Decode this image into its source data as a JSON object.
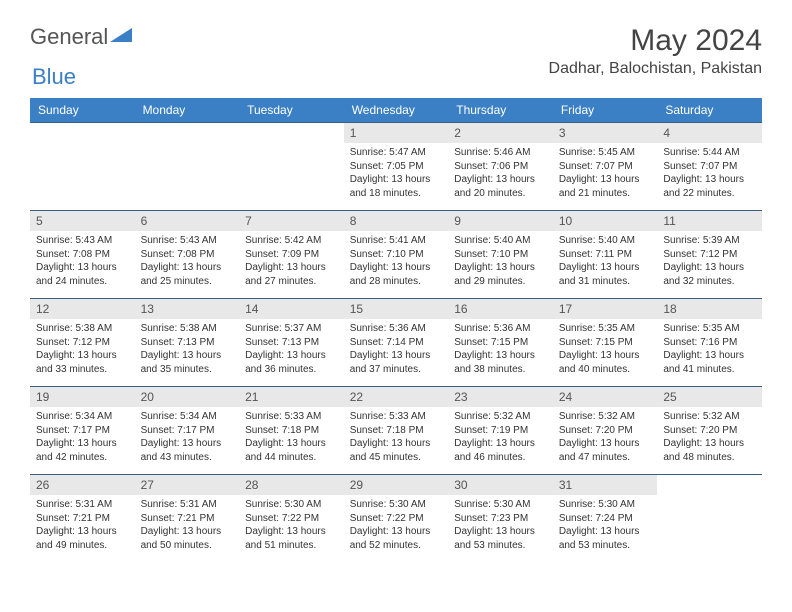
{
  "logo": {
    "text1": "General",
    "text2": "Blue"
  },
  "title": "May 2024",
  "location": "Dadhar, Balochistan, Pakistan",
  "colors": {
    "header_bg": "#3b7fc4",
    "header_text": "#ffffff",
    "daynum_bg": "#e8e8e8",
    "border": "#3b5f84",
    "text": "#333333"
  },
  "weekdays": [
    "Sunday",
    "Monday",
    "Tuesday",
    "Wednesday",
    "Thursday",
    "Friday",
    "Saturday"
  ],
  "weeks": [
    [
      {
        "empty": true
      },
      {
        "empty": true
      },
      {
        "empty": true
      },
      {
        "num": "1",
        "sunrise": "Sunrise: 5:47 AM",
        "sunset": "Sunset: 7:05 PM",
        "day1": "Daylight: 13 hours",
        "day2": "and 18 minutes."
      },
      {
        "num": "2",
        "sunrise": "Sunrise: 5:46 AM",
        "sunset": "Sunset: 7:06 PM",
        "day1": "Daylight: 13 hours",
        "day2": "and 20 minutes."
      },
      {
        "num": "3",
        "sunrise": "Sunrise: 5:45 AM",
        "sunset": "Sunset: 7:07 PM",
        "day1": "Daylight: 13 hours",
        "day2": "and 21 minutes."
      },
      {
        "num": "4",
        "sunrise": "Sunrise: 5:44 AM",
        "sunset": "Sunset: 7:07 PM",
        "day1": "Daylight: 13 hours",
        "day2": "and 22 minutes."
      }
    ],
    [
      {
        "num": "5",
        "sunrise": "Sunrise: 5:43 AM",
        "sunset": "Sunset: 7:08 PM",
        "day1": "Daylight: 13 hours",
        "day2": "and 24 minutes."
      },
      {
        "num": "6",
        "sunrise": "Sunrise: 5:43 AM",
        "sunset": "Sunset: 7:08 PM",
        "day1": "Daylight: 13 hours",
        "day2": "and 25 minutes."
      },
      {
        "num": "7",
        "sunrise": "Sunrise: 5:42 AM",
        "sunset": "Sunset: 7:09 PM",
        "day1": "Daylight: 13 hours",
        "day2": "and 27 minutes."
      },
      {
        "num": "8",
        "sunrise": "Sunrise: 5:41 AM",
        "sunset": "Sunset: 7:10 PM",
        "day1": "Daylight: 13 hours",
        "day2": "and 28 minutes."
      },
      {
        "num": "9",
        "sunrise": "Sunrise: 5:40 AM",
        "sunset": "Sunset: 7:10 PM",
        "day1": "Daylight: 13 hours",
        "day2": "and 29 minutes."
      },
      {
        "num": "10",
        "sunrise": "Sunrise: 5:40 AM",
        "sunset": "Sunset: 7:11 PM",
        "day1": "Daylight: 13 hours",
        "day2": "and 31 minutes."
      },
      {
        "num": "11",
        "sunrise": "Sunrise: 5:39 AM",
        "sunset": "Sunset: 7:12 PM",
        "day1": "Daylight: 13 hours",
        "day2": "and 32 minutes."
      }
    ],
    [
      {
        "num": "12",
        "sunrise": "Sunrise: 5:38 AM",
        "sunset": "Sunset: 7:12 PM",
        "day1": "Daylight: 13 hours",
        "day2": "and 33 minutes."
      },
      {
        "num": "13",
        "sunrise": "Sunrise: 5:38 AM",
        "sunset": "Sunset: 7:13 PM",
        "day1": "Daylight: 13 hours",
        "day2": "and 35 minutes."
      },
      {
        "num": "14",
        "sunrise": "Sunrise: 5:37 AM",
        "sunset": "Sunset: 7:13 PM",
        "day1": "Daylight: 13 hours",
        "day2": "and 36 minutes."
      },
      {
        "num": "15",
        "sunrise": "Sunrise: 5:36 AM",
        "sunset": "Sunset: 7:14 PM",
        "day1": "Daylight: 13 hours",
        "day2": "and 37 minutes."
      },
      {
        "num": "16",
        "sunrise": "Sunrise: 5:36 AM",
        "sunset": "Sunset: 7:15 PM",
        "day1": "Daylight: 13 hours",
        "day2": "and 38 minutes."
      },
      {
        "num": "17",
        "sunrise": "Sunrise: 5:35 AM",
        "sunset": "Sunset: 7:15 PM",
        "day1": "Daylight: 13 hours",
        "day2": "and 40 minutes."
      },
      {
        "num": "18",
        "sunrise": "Sunrise: 5:35 AM",
        "sunset": "Sunset: 7:16 PM",
        "day1": "Daylight: 13 hours",
        "day2": "and 41 minutes."
      }
    ],
    [
      {
        "num": "19",
        "sunrise": "Sunrise: 5:34 AM",
        "sunset": "Sunset: 7:17 PM",
        "day1": "Daylight: 13 hours",
        "day2": "and 42 minutes."
      },
      {
        "num": "20",
        "sunrise": "Sunrise: 5:34 AM",
        "sunset": "Sunset: 7:17 PM",
        "day1": "Daylight: 13 hours",
        "day2": "and 43 minutes."
      },
      {
        "num": "21",
        "sunrise": "Sunrise: 5:33 AM",
        "sunset": "Sunset: 7:18 PM",
        "day1": "Daylight: 13 hours",
        "day2": "and 44 minutes."
      },
      {
        "num": "22",
        "sunrise": "Sunrise: 5:33 AM",
        "sunset": "Sunset: 7:18 PM",
        "day1": "Daylight: 13 hours",
        "day2": "and 45 minutes."
      },
      {
        "num": "23",
        "sunrise": "Sunrise: 5:32 AM",
        "sunset": "Sunset: 7:19 PM",
        "day1": "Daylight: 13 hours",
        "day2": "and 46 minutes."
      },
      {
        "num": "24",
        "sunrise": "Sunrise: 5:32 AM",
        "sunset": "Sunset: 7:20 PM",
        "day1": "Daylight: 13 hours",
        "day2": "and 47 minutes."
      },
      {
        "num": "25",
        "sunrise": "Sunrise: 5:32 AM",
        "sunset": "Sunset: 7:20 PM",
        "day1": "Daylight: 13 hours",
        "day2": "and 48 minutes."
      }
    ],
    [
      {
        "num": "26",
        "sunrise": "Sunrise: 5:31 AM",
        "sunset": "Sunset: 7:21 PM",
        "day1": "Daylight: 13 hours",
        "day2": "and 49 minutes."
      },
      {
        "num": "27",
        "sunrise": "Sunrise: 5:31 AM",
        "sunset": "Sunset: 7:21 PM",
        "day1": "Daylight: 13 hours",
        "day2": "and 50 minutes."
      },
      {
        "num": "28",
        "sunrise": "Sunrise: 5:30 AM",
        "sunset": "Sunset: 7:22 PM",
        "day1": "Daylight: 13 hours",
        "day2": "and 51 minutes."
      },
      {
        "num": "29",
        "sunrise": "Sunrise: 5:30 AM",
        "sunset": "Sunset: 7:22 PM",
        "day1": "Daylight: 13 hours",
        "day2": "and 52 minutes."
      },
      {
        "num": "30",
        "sunrise": "Sunrise: 5:30 AM",
        "sunset": "Sunset: 7:23 PM",
        "day1": "Daylight: 13 hours",
        "day2": "and 53 minutes."
      },
      {
        "num": "31",
        "sunrise": "Sunrise: 5:30 AM",
        "sunset": "Sunset: 7:24 PM",
        "day1": "Daylight: 13 hours",
        "day2": "and 53 minutes."
      },
      {
        "empty": true
      }
    ]
  ]
}
